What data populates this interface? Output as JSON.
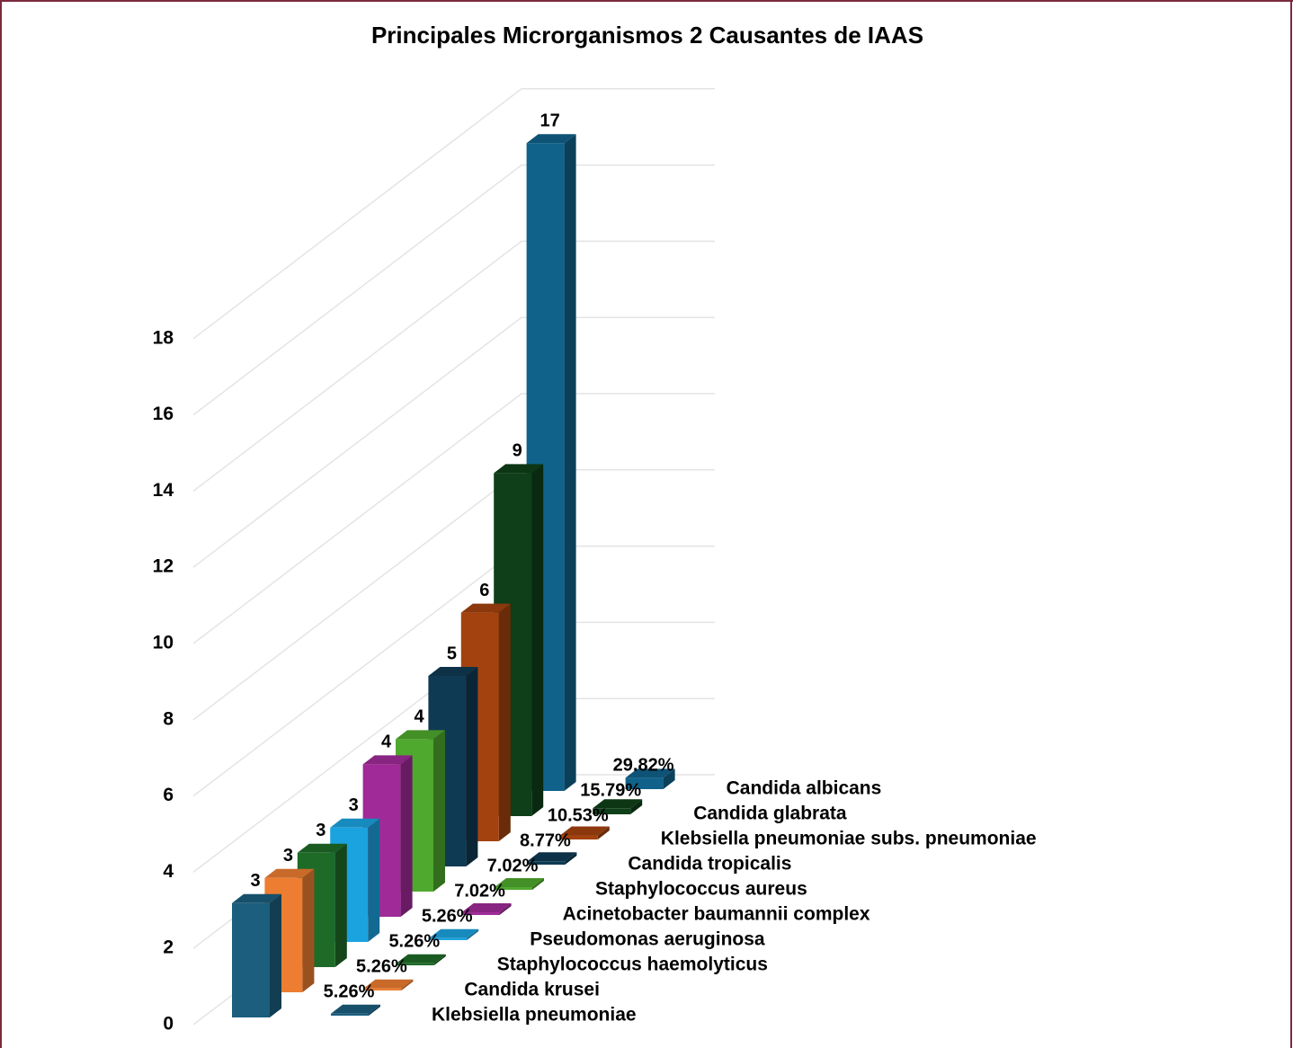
{
  "chart_data": {
    "type": "bar3d",
    "title": "Principales Microrganismos 2 Causantes de IAAS",
    "categories": [
      "Klebsiella pneumoniae",
      "Candida krusei",
      "Staphylococcus haemolyticus",
      "Pseudomonas aeruginosa",
      "Acinetobacter baumannii complex",
      "Staphylococcus aureus",
      "Candida tropicalis",
      "Klebsiella pneumoniae subs. pneumoniae",
      "Candida glabrata",
      "Candida albicans"
    ],
    "colors": [
      "#1b5e7e",
      "#ed7d31",
      "#1e6b28",
      "#1ba3e0",
      "#a02a98",
      "#4fa92e",
      "#0f3a53",
      "#a3420f",
      "#0e3f18",
      "#10628a"
    ],
    "series": [
      {
        "values": [
          3,
          3,
          3,
          3,
          4,
          4,
          5,
          6,
          9,
          17
        ]
      },
      {
        "values": [
          0.0526,
          0.0526,
          0.0526,
          0.0526,
          0.0702,
          0.0702,
          0.0877,
          0.1053,
          0.1579,
          0.2982
        ],
        "value_labels": [
          "5.26%",
          "5.26%",
          "5.26%",
          "5.26%",
          "7.02%",
          "7.02%",
          "8.77%",
          "10.53%",
          "15.79%",
          "29.82%"
        ]
      }
    ],
    "ylim": [
      0,
      18
    ],
    "yticks": [
      0,
      2,
      4,
      6,
      8,
      10,
      12,
      14,
      16,
      18
    ],
    "grid": true
  }
}
